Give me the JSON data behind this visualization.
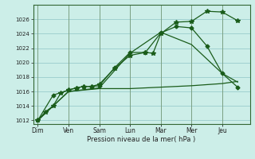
{
  "xlabel": "Pression niveau de la mer( hPa )",
  "background_color": "#cceee8",
  "grid_color": "#99cccc",
  "line_color": "#1a5c1a",
  "ylim": [
    1011.5,
    1028.0
  ],
  "yticks": [
    1012,
    1014,
    1016,
    1018,
    1020,
    1022,
    1024,
    1026
  ],
  "day_labels": [
    "Dim",
    "Ven",
    "Sam",
    "Lun",
    "Mar",
    "Mer",
    "Jeu"
  ],
  "day_positions": [
    0,
    2,
    4,
    6,
    8,
    10,
    12
  ],
  "xlim": [
    -0.3,
    13.8
  ],
  "series": [
    {
      "x": [
        0,
        0.5,
        1,
        1.5,
        2,
        2.5,
        3,
        3.5,
        4,
        5,
        6,
        7,
        7.5,
        8,
        9,
        10,
        11,
        12,
        13
      ],
      "y": [
        1012.0,
        1013.2,
        1014.0,
        1015.8,
        1016.2,
        1016.5,
        1016.7,
        1016.7,
        1017.0,
        1019.2,
        1021.0,
        1021.4,
        1021.3,
        1024.0,
        1025.6,
        1025.7,
        1027.1,
        1027.0,
        1025.8
      ],
      "marker": "*",
      "markersize": 4.0,
      "lw": 0.9
    },
    {
      "x": [
        0,
        1,
        2,
        2.5,
        3,
        3.5,
        4,
        5,
        6,
        7,
        8,
        9,
        10,
        11,
        12,
        13
      ],
      "y": [
        1012.0,
        1015.5,
        1016.2,
        1016.5,
        1016.7,
        1016.7,
        1016.8,
        1019.3,
        1021.4,
        1021.4,
        1024.1,
        1025.0,
        1024.8,
        1022.3,
        1018.5,
        1016.6
      ],
      "marker": "D",
      "markersize": 2.5,
      "lw": 0.9
    },
    {
      "x": [
        0,
        2,
        4,
        6,
        8,
        10,
        12,
        13
      ],
      "y": [
        1012.0,
        1016.0,
        1016.5,
        1021.3,
        1024.2,
        1022.5,
        1018.5,
        1017.3
      ],
      "marker": null,
      "markersize": 0,
      "lw": 0.9
    },
    {
      "x": [
        0,
        2,
        4,
        6,
        8,
        10,
        12,
        13
      ],
      "y": [
        1012.0,
        1016.0,
        1016.4,
        1016.4,
        1016.6,
        1016.8,
        1017.1,
        1017.4
      ],
      "marker": null,
      "markersize": 0,
      "lw": 0.9
    }
  ]
}
